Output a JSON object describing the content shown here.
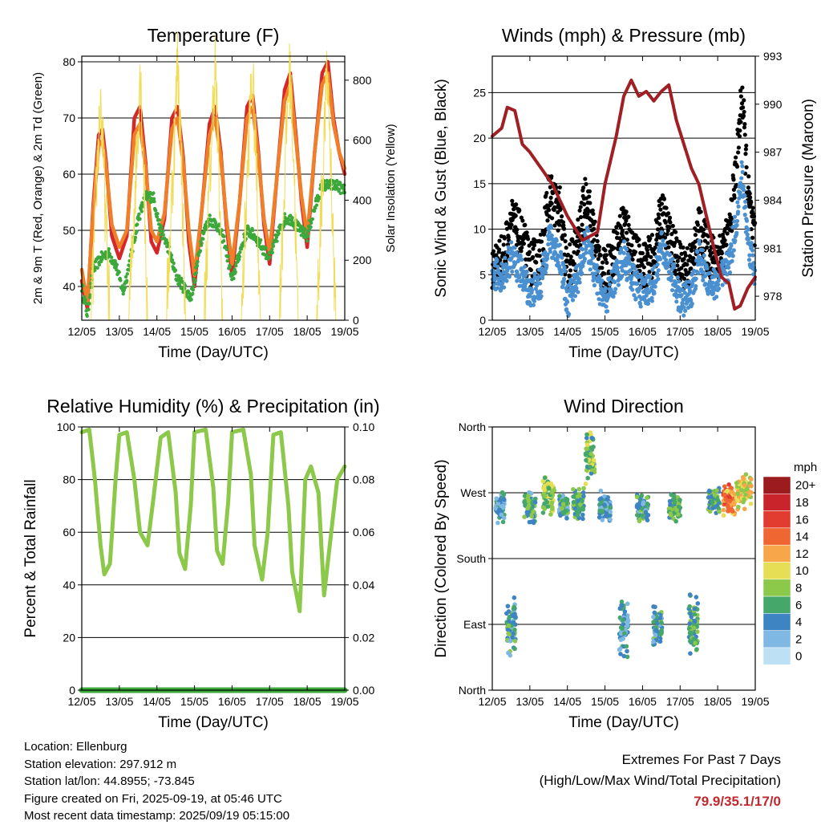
{
  "figure": {
    "bg": "#ffffff",
    "x_ticks": [
      "12/05",
      "13/05",
      "14/05",
      "15/05",
      "16/05",
      "17/05",
      "18/05",
      "19/05"
    ],
    "x_label": "Time (Day/UTC)"
  },
  "info": {
    "location": "Location: Ellenburg",
    "elevation": "Station elevation: 297.912 m",
    "latlon": "Station lat/lon: 44.8955; -73.845",
    "created": "Figure created on Fri, 2025-09-19, at 05:46 UTC",
    "recent": "Most recent data timestamp: 2025/09/19 05:15:00"
  },
  "extremes": {
    "title": "Extremes For Past 7 Days",
    "subtitle": "(High/Low/Max Wind/Total Precipitation)",
    "values": "79.9/35.1/17/0",
    "color": "#c0282d"
  },
  "chart_data": [
    {
      "id": "temperature",
      "type": "line",
      "title": "Temperature (F)",
      "xlabel": "Time (Day/UTC)",
      "ylabel": "2m & 9m T (Red, Orange) & 2m Td (Green)",
      "ylabel_right": "Solar Insolation (Yellow)",
      "xlim": [
        0,
        7
      ],
      "ylim": [
        34,
        81
      ],
      "y_ticks": [
        40,
        50,
        60,
        70,
        80
      ],
      "ylim_right": [
        0,
        880
      ],
      "y_ticks_right": [
        0,
        200,
        400,
        600,
        800
      ],
      "grid": "horizontal",
      "series": [
        {
          "name": "2m T",
          "color": "#d62728",
          "x": [
            0,
            0.15,
            0.3,
            0.45,
            0.55,
            0.65,
            0.8,
            1.0,
            1.2,
            1.4,
            1.55,
            1.7,
            1.85,
            2.0,
            2.2,
            2.4,
            2.55,
            2.7,
            2.85,
            3.0,
            3.2,
            3.4,
            3.55,
            3.7,
            3.85,
            4.0,
            4.2,
            4.4,
            4.55,
            4.7,
            4.85,
            5.0,
            5.2,
            5.4,
            5.55,
            5.7,
            5.85,
            6.0,
            6.2,
            6.4,
            6.55,
            6.7,
            6.85,
            7.0
          ],
          "y": [
            41,
            36,
            54,
            67,
            68,
            62,
            49,
            45,
            49,
            70,
            72,
            62,
            48,
            46,
            52,
            70,
            72,
            63,
            48,
            40,
            54,
            69,
            72,
            64,
            51,
            42,
            55,
            72,
            74,
            64,
            51,
            44,
            60,
            75,
            78,
            67,
            55,
            47,
            64,
            78,
            80,
            70,
            64,
            60
          ]
        },
        {
          "name": "9m T",
          "color": "#f07f2a",
          "x": [
            0,
            0.15,
            0.3,
            0.45,
            0.55,
            0.65,
            0.8,
            1.0,
            1.2,
            1.4,
            1.55,
            1.7,
            1.85,
            2.0,
            2.2,
            2.4,
            2.55,
            2.7,
            2.85,
            3.0,
            3.2,
            3.4,
            3.55,
            3.7,
            3.85,
            4.0,
            4.2,
            4.4,
            4.55,
            4.7,
            4.85,
            5.0,
            5.2,
            5.4,
            5.55,
            5.7,
            5.85,
            6.0,
            6.2,
            6.4,
            6.55,
            6.7,
            6.85,
            7.0
          ],
          "y": [
            43,
            37,
            53,
            65,
            66,
            61,
            51,
            47,
            50,
            67,
            69,
            61,
            50,
            48,
            53,
            68,
            70,
            62,
            50,
            42,
            54,
            67,
            70,
            63,
            52,
            44,
            55,
            70,
            72,
            63,
            52,
            46,
            60,
            73,
            76,
            66,
            56,
            49,
            64,
            76,
            78,
            69,
            64,
            61
          ]
        },
        {
          "name": "2m Td",
          "color": "#3ca83c",
          "x": [
            0,
            0.15,
            0.3,
            0.5,
            0.7,
            0.9,
            1.1,
            1.3,
            1.5,
            1.7,
            1.9,
            2.1,
            2.3,
            2.5,
            2.7,
            2.9,
            3.0,
            3.2,
            3.4,
            3.6,
            3.8,
            4.0,
            4.2,
            4.4,
            4.6,
            4.8,
            5.0,
            5.2,
            5.4,
            5.6,
            5.8,
            6.0,
            6.2,
            6.4,
            6.6,
            6.8,
            7.0
          ],
          "y": [
            40,
            35,
            43,
            45,
            46,
            44,
            39,
            45,
            52,
            56,
            56,
            50,
            47,
            42,
            40,
            38,
            41,
            49,
            52,
            51,
            48,
            41,
            46,
            50,
            49,
            47,
            45,
            49,
            52,
            52,
            50,
            49,
            54,
            58,
            58,
            58,
            57
          ]
        },
        {
          "name": "Solar Insolation",
          "color": "#f2dc55",
          "axis": "right",
          "x": [
            0,
            0.25,
            0.4,
            0.5,
            0.6,
            0.75,
            1.0,
            1.25,
            1.5,
            1.55,
            1.65,
            1.75,
            2.0,
            2.25,
            2.5,
            2.55,
            2.65,
            2.75,
            3.0,
            3.25,
            3.5,
            3.55,
            3.65,
            3.75,
            4.0,
            4.25,
            4.5,
            4.55,
            4.65,
            4.75,
            5.0,
            5.25,
            5.5,
            5.55,
            5.65,
            5.75,
            6.0,
            6.25,
            6.5,
            6.55,
            6.65,
            6.75,
            7.0
          ],
          "y": [
            0,
            0,
            480,
            740,
            450,
            0,
            0,
            0,
            650,
            860,
            500,
            0,
            0,
            0,
            700,
            880,
            560,
            0,
            0,
            0,
            730,
            860,
            480,
            0,
            0,
            0,
            760,
            790,
            500,
            0,
            0,
            0,
            780,
            820,
            520,
            0,
            0,
            0,
            750,
            800,
            460,
            0,
            0
          ]
        }
      ]
    },
    {
      "id": "winds",
      "type": "line",
      "title": "Winds (mph) & Pressure (mb)",
      "xlabel": "Time (Day/UTC)",
      "ylabel": "Sonic Wind & Gust (Blue, Black)",
      "ylabel_right": "Station Pressure (Maroon)",
      "xlim": [
        0,
        7
      ],
      "ylim": [
        0,
        29
      ],
      "y_ticks": [
        0,
        5,
        10,
        15,
        20,
        25
      ],
      "ylim_right": [
        976.5,
        993
      ],
      "y_ticks_right": [
        978,
        981,
        984,
        987,
        990,
        993
      ],
      "grid": "horizontal",
      "series": [
        {
          "name": "Gust",
          "color": "#000000",
          "x": [
            0,
            0.3,
            0.5,
            0.8,
            1.0,
            1.3,
            1.5,
            1.8,
            2.0,
            2.3,
            2.5,
            2.8,
            3.0,
            3.3,
            3.5,
            3.8,
            4.0,
            4.3,
            4.5,
            4.8,
            5.0,
            5.3,
            5.5,
            5.8,
            6.0,
            6.3,
            6.5,
            6.65,
            6.8,
            7.0
          ],
          "y": [
            6,
            7,
            11,
            9,
            6,
            7,
            14,
            12,
            5,
            9,
            14,
            7,
            5,
            8,
            11,
            7,
            6,
            7,
            12,
            8,
            6,
            6,
            10,
            7,
            7,
            9,
            17,
            25,
            14,
            8
          ]
        },
        {
          "name": "Wind",
          "color": "#4a90d0",
          "x": [
            0,
            0.3,
            0.5,
            0.8,
            1.0,
            1.3,
            1.5,
            1.8,
            2.0,
            2.3,
            2.5,
            2.8,
            3.0,
            3.3,
            3.5,
            3.8,
            4.0,
            4.3,
            4.5,
            4.8,
            5.0,
            5.3,
            5.5,
            5.8,
            6.0,
            6.3,
            6.5,
            6.65,
            6.8,
            7.0
          ],
          "y": [
            5,
            5,
            7,
            5,
            3,
            4,
            9,
            7,
            2,
            5,
            9,
            4,
            2,
            5,
            7,
            4,
            3,
            4,
            8,
            5,
            2,
            3,
            7,
            4,
            4,
            6,
            11,
            16,
            9,
            5
          ]
        },
        {
          "name": "Pressure",
          "color": "#a01f24",
          "axis": "right",
          "x": [
            0,
            0.25,
            0.4,
            0.6,
            0.8,
            1.0,
            1.3,
            1.6,
            2.0,
            2.4,
            2.8,
            3.0,
            3.3,
            3.5,
            3.7,
            3.9,
            4.1,
            4.3,
            4.5,
            4.7,
            4.9,
            5.1,
            5.3,
            5.5,
            5.7,
            5.9,
            6.1,
            6.3,
            6.45,
            6.6,
            6.8,
            7.0
          ],
          "y": [
            988,
            988.5,
            989.8,
            989.6,
            987.5,
            987,
            986,
            985,
            983,
            981.5,
            982,
            985,
            988,
            990.5,
            991.5,
            990.5,
            990.8,
            990.2,
            990.8,
            991.2,
            989,
            987.5,
            986,
            985,
            983,
            981,
            979.2,
            978.8,
            977.2,
            977.4,
            978.5,
            979.2
          ]
        }
      ]
    },
    {
      "id": "humidity",
      "type": "line",
      "title": "Relative Humidity (%) & Precipitation (in)",
      "xlabel": "Time (Day/UTC)",
      "ylabel": "Percent & Total Rainfall",
      "xlim": [
        0,
        7
      ],
      "ylim": [
        0,
        100
      ],
      "y_ticks": [
        0,
        20,
        40,
        60,
        80,
        100
      ],
      "ylim_right": [
        0,
        0.1
      ],
      "y_ticks_right": [
        "0.00",
        "0.02",
        "0.04",
        "0.06",
        "0.08",
        "0.10"
      ],
      "grid": "horizontal",
      "series": [
        {
          "name": "Relative Humidity",
          "color": "#8cc84a",
          "x": [
            0,
            0.2,
            0.35,
            0.5,
            0.6,
            0.75,
            0.9,
            1.0,
            1.2,
            1.4,
            1.55,
            1.75,
            1.9,
            2.1,
            2.3,
            2.5,
            2.6,
            2.75,
            2.9,
            3.0,
            3.3,
            3.5,
            3.6,
            3.75,
            3.9,
            4.0,
            4.3,
            4.5,
            4.6,
            4.8,
            4.95,
            5.1,
            5.3,
            5.5,
            5.6,
            5.8,
            5.95,
            6.1,
            6.3,
            6.45,
            6.6,
            6.8,
            7.0
          ],
          "y": [
            98,
            99,
            80,
            55,
            44,
            48,
            80,
            97,
            98,
            80,
            60,
            55,
            72,
            96,
            98,
            75,
            52,
            46,
            70,
            98,
            99,
            77,
            53,
            48,
            72,
            98,
            99,
            82,
            55,
            42,
            60,
            97,
            98,
            70,
            45,
            30,
            80,
            85,
            75,
            36,
            55,
            80,
            85
          ]
        },
        {
          "name": "Precipitation",
          "color": "#3ca83c",
          "axis": "right",
          "x": [
            0,
            7
          ],
          "y": [
            0,
            0
          ]
        }
      ]
    },
    {
      "id": "direction",
      "type": "scatter",
      "title": "Wind Direction",
      "xlabel": "Time (Day/UTC)",
      "ylabel": "Direction (Colored By Speed)",
      "xlim": [
        0,
        7
      ],
      "ylim": [
        0,
        360
      ],
      "y_ticks": [
        {
          "v": 0,
          "label": "North"
        },
        {
          "v": 90,
          "label": "East"
        },
        {
          "v": 180,
          "label": "South"
        },
        {
          "v": 270,
          "label": "West"
        },
        {
          "v": 360,
          "label": "North"
        }
      ],
      "grid": "horizontal",
      "colorbar": {
        "title": "mph",
        "labels": [
          "20+",
          "18",
          "16",
          "14",
          "12",
          "10",
          "8",
          "6",
          "4",
          "2",
          "0"
        ],
        "colors": [
          "#9c1b1f",
          "#c9242b",
          "#e23b2f",
          "#ef6633",
          "#f7a64a",
          "#e6de55",
          "#8cc84a",
          "#45a86a",
          "#3e84c2",
          "#80b8e4",
          "#bde0f5"
        ]
      },
      "clusters": [
        {
          "x": 0.2,
          "dir": 250,
          "spread": 18,
          "wid": 0.12,
          "speed": 4
        },
        {
          "x": 0.5,
          "dir": 85,
          "spread": 35,
          "wid": 0.12,
          "speed": 5
        },
        {
          "x": 1.0,
          "dir": 250,
          "spread": 20,
          "wid": 0.15,
          "speed": 5
        },
        {
          "x": 1.5,
          "dir": 270,
          "spread": 30,
          "wid": 0.15,
          "speed": 8
        },
        {
          "x": 1.9,
          "dir": 250,
          "spread": 15,
          "wid": 0.12,
          "speed": 5
        },
        {
          "x": 2.3,
          "dir": 255,
          "spread": 20,
          "wid": 0.15,
          "speed": 6
        },
        {
          "x": 2.6,
          "dir": 320,
          "spread": 30,
          "wid": 0.12,
          "speed": 7
        },
        {
          "x": 3.0,
          "dir": 250,
          "spread": 20,
          "wid": 0.15,
          "speed": 4
        },
        {
          "x": 3.5,
          "dir": 85,
          "spread": 35,
          "wid": 0.12,
          "speed": 4
        },
        {
          "x": 4.0,
          "dir": 250,
          "spread": 15,
          "wid": 0.15,
          "speed": 5
        },
        {
          "x": 4.4,
          "dir": 85,
          "spread": 30,
          "wid": 0.12,
          "speed": 5
        },
        {
          "x": 4.85,
          "dir": 250,
          "spread": 15,
          "wid": 0.15,
          "speed": 6
        },
        {
          "x": 5.35,
          "dir": 90,
          "spread": 30,
          "wid": 0.12,
          "speed": 6
        },
        {
          "x": 5.9,
          "dir": 260,
          "spread": 15,
          "wid": 0.15,
          "speed": 6
        },
        {
          "x": 6.3,
          "dir": 258,
          "spread": 20,
          "wid": 0.15,
          "speed": 13
        },
        {
          "x": 6.7,
          "dir": 275,
          "spread": 20,
          "wid": 0.2,
          "speed": 10
        }
      ]
    }
  ]
}
